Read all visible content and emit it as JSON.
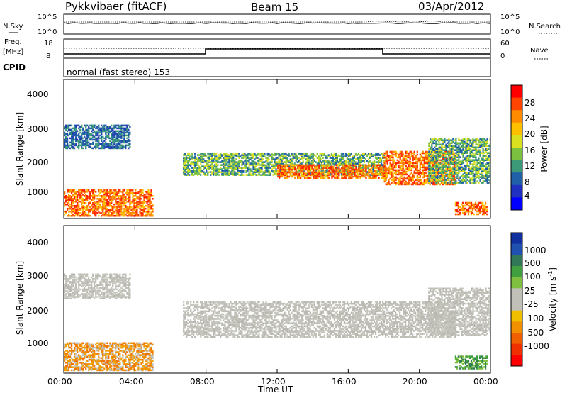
{
  "header": {
    "title": "Pykkvibaer (fitACF)",
    "beam": "Beam 15",
    "date": "03/Apr/2012"
  },
  "ctrl": {
    "nsky_label": "N.Sky",
    "nsky_ticks": [
      "10^5",
      "10^0"
    ],
    "nsearch_label": "N.Search",
    "nsearch_ticks": [
      "10^5",
      "10^0"
    ],
    "freq_label": "Freq.",
    "freq_unit": "[MHz]",
    "freq_ticks": [
      "18",
      "8"
    ],
    "nave_label": "Nave",
    "nave_ticks": [
      "60",
      "0"
    ],
    "cpid_label": "CPID",
    "cpid_value": "normal (fast stereo) 153"
  },
  "power_panel": {
    "ylabel": "Slant Range [km]",
    "yticks": [
      "4000",
      "3000",
      "2000",
      "1000"
    ],
    "colorbar_label": "Power [dB]",
    "colorbar_ticks": [
      "28",
      "24",
      "20",
      "16",
      "12",
      "8",
      "4"
    ],
    "colorbar_colors": [
      "#ff0000",
      "#ff4500",
      "#ff8c00",
      "#ffc000",
      "#d8e020",
      "#7cc040",
      "#3c9a78",
      "#2060a8",
      "#2030c0",
      "#0000ff"
    ]
  },
  "velocity_panel": {
    "ylabel": "Slant Range [km]",
    "yticks": [
      "4000",
      "3000",
      "2000",
      "1000"
    ],
    "colorbar_label": "Velocity [m s",
    "colorbar_label_sup": "-1",
    "colorbar_label_end": "]",
    "colorbar_ticks": [
      "1000",
      "500",
      "100",
      "25",
      "-25",
      "-100",
      "-500",
      "-1000"
    ],
    "colorbar_colors": [
      "#1030a0",
      "#2050b0",
      "#307858",
      "#40a040",
      "#80c040",
      "#c0c0b8",
      "#c0c0b8",
      "#f0c000",
      "#f09000",
      "#f06000",
      "#f03000",
      "#ff0000"
    ]
  },
  "xaxis": {
    "label": "Time UT",
    "ticks": [
      "00:00",
      "04:00",
      "08:00",
      "12:00",
      "16:00",
      "20:00",
      "00:00"
    ]
  },
  "chart_data": [
    {
      "type": "heatmap",
      "title": "Pykkvibaer (fitACF)",
      "panel": "power",
      "xlabel": "Time UT",
      "ylabel": "Slant Range [km]",
      "xlim": [
        0,
        24
      ],
      "ylim": [
        180,
        4600
      ],
      "colorbar": "Power [dB]",
      "clim": [
        0,
        30
      ],
      "regions": [
        {
          "t0": 0.0,
          "t1": 3.7,
          "r0": 2400,
          "r1": 3150,
          "level": "low"
        },
        {
          "t0": 0.0,
          "t1": 5.0,
          "r0": 250,
          "r1": 1100,
          "level": "high"
        },
        {
          "t0": 6.7,
          "t1": 18.0,
          "r0": 1550,
          "r1": 2250,
          "level": "medium"
        },
        {
          "t0": 12.0,
          "t1": 18.0,
          "r0": 1450,
          "r1": 1900,
          "level": "high"
        },
        {
          "t0": 18.0,
          "t1": 22.0,
          "r0": 1250,
          "r1": 2300,
          "level": "high"
        },
        {
          "t0": 20.5,
          "t1": 24.0,
          "r0": 1300,
          "r1": 2700,
          "level": "medium"
        },
        {
          "t0": 22.0,
          "t1": 23.8,
          "r0": 300,
          "r1": 700,
          "level": "high"
        }
      ]
    },
    {
      "type": "heatmap",
      "panel": "velocity",
      "xlabel": "Time UT",
      "ylabel": "Slant Range [km]",
      "xlim": [
        0,
        24
      ],
      "ylim": [
        180,
        4600
      ],
      "colorbar": "Velocity [m s-1]",
      "clim": [
        -1000,
        1000
      ],
      "regions": [
        {
          "t0": 0.0,
          "t1": 3.7,
          "r0": 2400,
          "r1": 3150,
          "velocity": "near zero"
        },
        {
          "t0": 0.0,
          "t1": 5.0,
          "r0": 250,
          "r1": 1100,
          "velocity": "-100 to -500"
        },
        {
          "t0": 6.7,
          "t1": 22.0,
          "r0": 1250,
          "r1": 2300,
          "velocity": "-25 to 25"
        },
        {
          "t0": 20.5,
          "t1": 24.0,
          "r0": 1300,
          "r1": 2700,
          "velocity": "-25 to 25"
        },
        {
          "t0": 22.0,
          "t1": 23.8,
          "r0": 300,
          "r1": 700,
          "velocity": "25 to 100"
        }
      ]
    }
  ]
}
